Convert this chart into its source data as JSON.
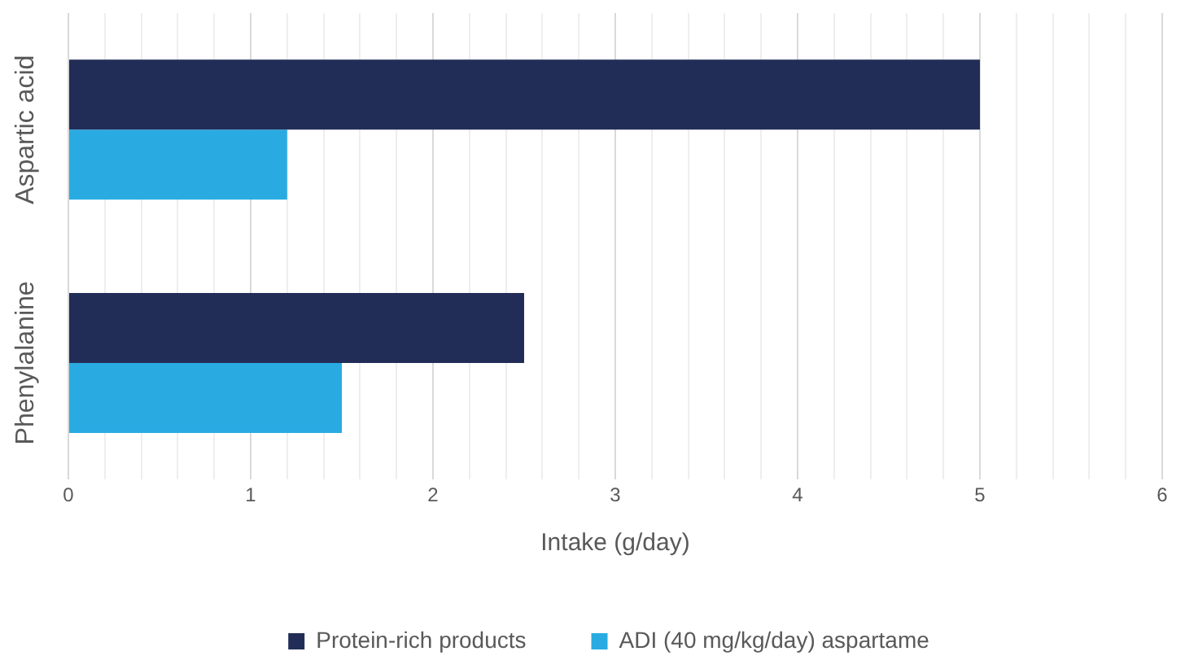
{
  "chart_data": {
    "type": "bar",
    "orientation": "horizontal",
    "categories": [
      "Aspartic acid",
      "Phenylalanine"
    ],
    "series": [
      {
        "name": "Protein-rich products",
        "color": "#222d57",
        "values": [
          5,
          2.5
        ]
      },
      {
        "name": "ADI (40 mg/kg/day) aspartame",
        "color": "#29abe2",
        "values": [
          1.2,
          1.5
        ]
      }
    ],
    "xlabel": "Intake (g/day)",
    "xlim": [
      0,
      6
    ],
    "xticks": [
      0,
      {
        "value": 0.2,
        "label": null
      },
      {
        "value": 0.4,
        "label": null
      },
      {
        "value": 0.6,
        "label": null
      },
      {
        "value": 0.8,
        "label": null
      },
      1,
      {
        "value": 1.2,
        "label": null
      },
      {
        "value": 1.4,
        "label": null
      },
      {
        "value": 1.6,
        "label": null
      },
      {
        "value": 1.8,
        "label": null
      },
      2,
      {
        "value": 2.2,
        "label": null
      },
      {
        "value": 2.4,
        "label": null
      },
      {
        "value": 2.6,
        "label": null
      },
      {
        "value": 2.8,
        "label": null
      },
      3,
      {
        "value": 3.2,
        "label": null
      },
      {
        "value": 3.4,
        "label": null
      },
      {
        "value": 3.6,
        "label": null
      },
      {
        "value": 3.8,
        "label": null
      },
      4,
      {
        "value": 4.2,
        "label": null
      },
      {
        "value": 4.4,
        "label": null
      },
      {
        "value": 4.6,
        "label": null
      },
      {
        "value": 4.8,
        "label": null
      },
      5,
      {
        "value": 5.2,
        "label": null
      },
      {
        "value": 5.4,
        "label": null
      },
      {
        "value": 5.6,
        "label": null
      },
      {
        "value": 5.8,
        "label": null
      },
      6
    ],
    "grid": "x",
    "legend": "bottom"
  }
}
